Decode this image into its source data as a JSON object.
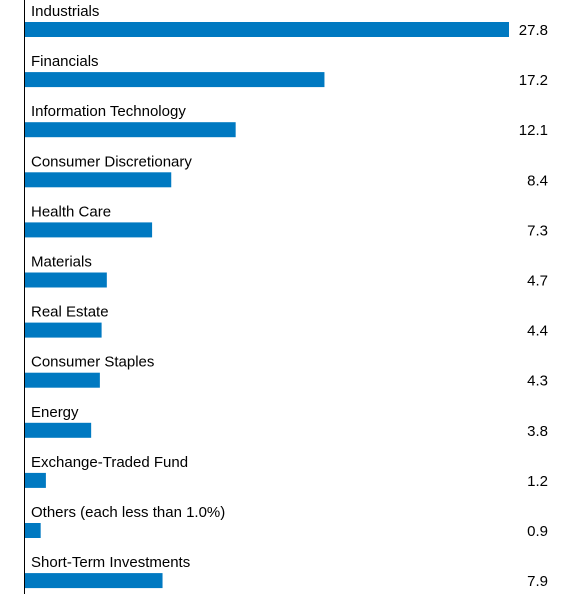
{
  "chart_data": {
    "type": "bar",
    "orientation": "horizontal",
    "color": "#0079c1",
    "categories": [
      "Industrials",
      "Financials",
      "Information Technology",
      "Consumer Discretionary",
      "Health Care",
      "Materials",
      "Real Estate",
      "Consumer Staples",
      "Energy",
      "Exchange-Traded Fund",
      "Others (each less than 1.0%)",
      "Short-Term Investments"
    ],
    "values": [
      27.8,
      17.2,
      12.1,
      8.4,
      7.3,
      4.7,
      4.4,
      4.3,
      3.8,
      1.2,
      0.9,
      7.9
    ]
  }
}
